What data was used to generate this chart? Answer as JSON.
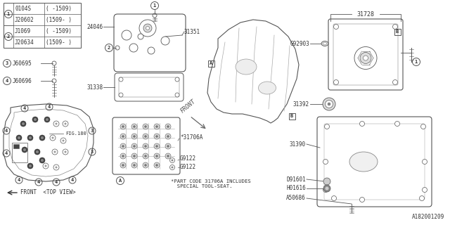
{
  "bg_color": "#ffffff",
  "line_color": "#555555",
  "text_color": "#333333",
  "table": {
    "rows": [
      [
        "0104S",
        "( -1509)"
      ],
      [
        "J20602",
        "(1509- )"
      ],
      [
        "J1069",
        "( -1509)"
      ],
      [
        "J20634",
        "(1509- )"
      ]
    ]
  },
  "parts_3": "J60695",
  "parts_4": "J60696",
  "labels_center": [
    "24046",
    "31351",
    "31338",
    "31706A",
    "G9122",
    "G9122"
  ],
  "labels_right": [
    "31728",
    "G92903",
    "31392",
    "31390",
    "D91601",
    "H01616",
    "A50686"
  ],
  "footer": "*PART CODE 31706A INCLUDES\n  SPECIAL TOOL-SEAT.",
  "diagram_id": "A182001209",
  "front_arrow": "FRONT",
  "top_view": "<TOP VIEW>"
}
